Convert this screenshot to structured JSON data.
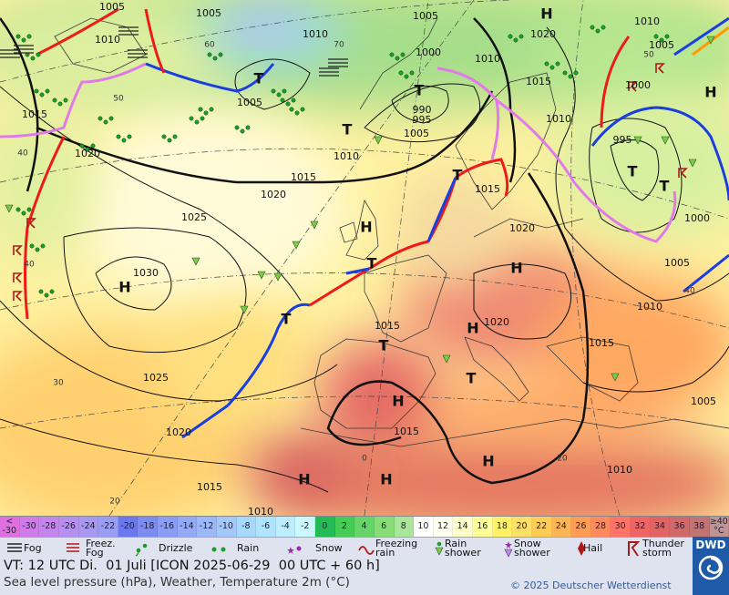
{
  "map": {
    "isobar_labels": [
      1005,
      1005,
      1010,
      1010,
      1005,
      1020,
      1010,
      1005,
      1000,
      1010,
      1015,
      1000,
      1005,
      990,
      995,
      1005,
      1010,
      995,
      1015,
      1020,
      1010,
      1015,
      1020,
      1015,
      1025,
      1020,
      1000,
      1030,
      1005,
      1010,
      1015,
      1020,
      1015,
      1025,
      1005,
      1020,
      1015,
      1010,
      1015,
      1010
    ],
    "centers": [
      "H",
      "H",
      "H",
      "H",
      "H",
      "H",
      "H",
      "H",
      "H",
      "H",
      "T",
      "T",
      "T",
      "T",
      "T",
      "T",
      "T",
      "T",
      "T",
      "T"
    ],
    "grid_labels": [
      60,
      50,
      40,
      40,
      30,
      20,
      0,
      20,
      40,
      50,
      70
    ]
  },
  "colorbar": {
    "labels": [
      "< -30",
      -30,
      -28,
      -26,
      -24,
      -22,
      -20,
      -18,
      -16,
      -14,
      -12,
      -10,
      -8,
      -6,
      -4,
      -2,
      0,
      2,
      4,
      6,
      8,
      10,
      12,
      14,
      16,
      18,
      20,
      22,
      24,
      26,
      28,
      30,
      32,
      34,
      36,
      38,
      "≥40 °C"
    ],
    "colors": [
      "#e070e0",
      "#d07ce8",
      "#c486ec",
      "#b690ee",
      "#a898f0",
      "#9a9ef2",
      "#6b78ee",
      "#7c8cf0",
      "#8a9cf4",
      "#94aaf6",
      "#9cb8f8",
      "#a4c8fa",
      "#a8d8fc",
      "#b0e4fe",
      "#bceeff",
      "#ccf8ff",
      "#22bb55",
      "#44cc55",
      "#66d466",
      "#88dd77",
      "#aae699",
      "#ffffff",
      "#fffff0",
      "#ffffcc",
      "#ffff99",
      "#fff266",
      "#ffe066",
      "#ffcc55",
      "#ffb455",
      "#ff9c55",
      "#ff8a60",
      "#ff7468",
      "#f06464",
      "#e06464",
      "#d06a6a",
      "#c07474",
      "#c09494"
    ]
  },
  "weather_legend": [
    "Fog",
    "Freez. Fog",
    "Drizzle",
    "Rain",
    "Snow",
    "Freezing rain",
    "Rain shower",
    "Snow shower",
    "Hail",
    "Thunder storm"
  ],
  "footer": {
    "valid_time": "VT: 12 UTC Di.  01 Juli [ICON 2025-06-29  00 UTC + 60 h]",
    "description": "Sea level pressure (hPa), Weather, Temperature 2m (°C)",
    "copyright": "© 2025 Deutscher Wetterdienst",
    "logo": "DWD"
  }
}
